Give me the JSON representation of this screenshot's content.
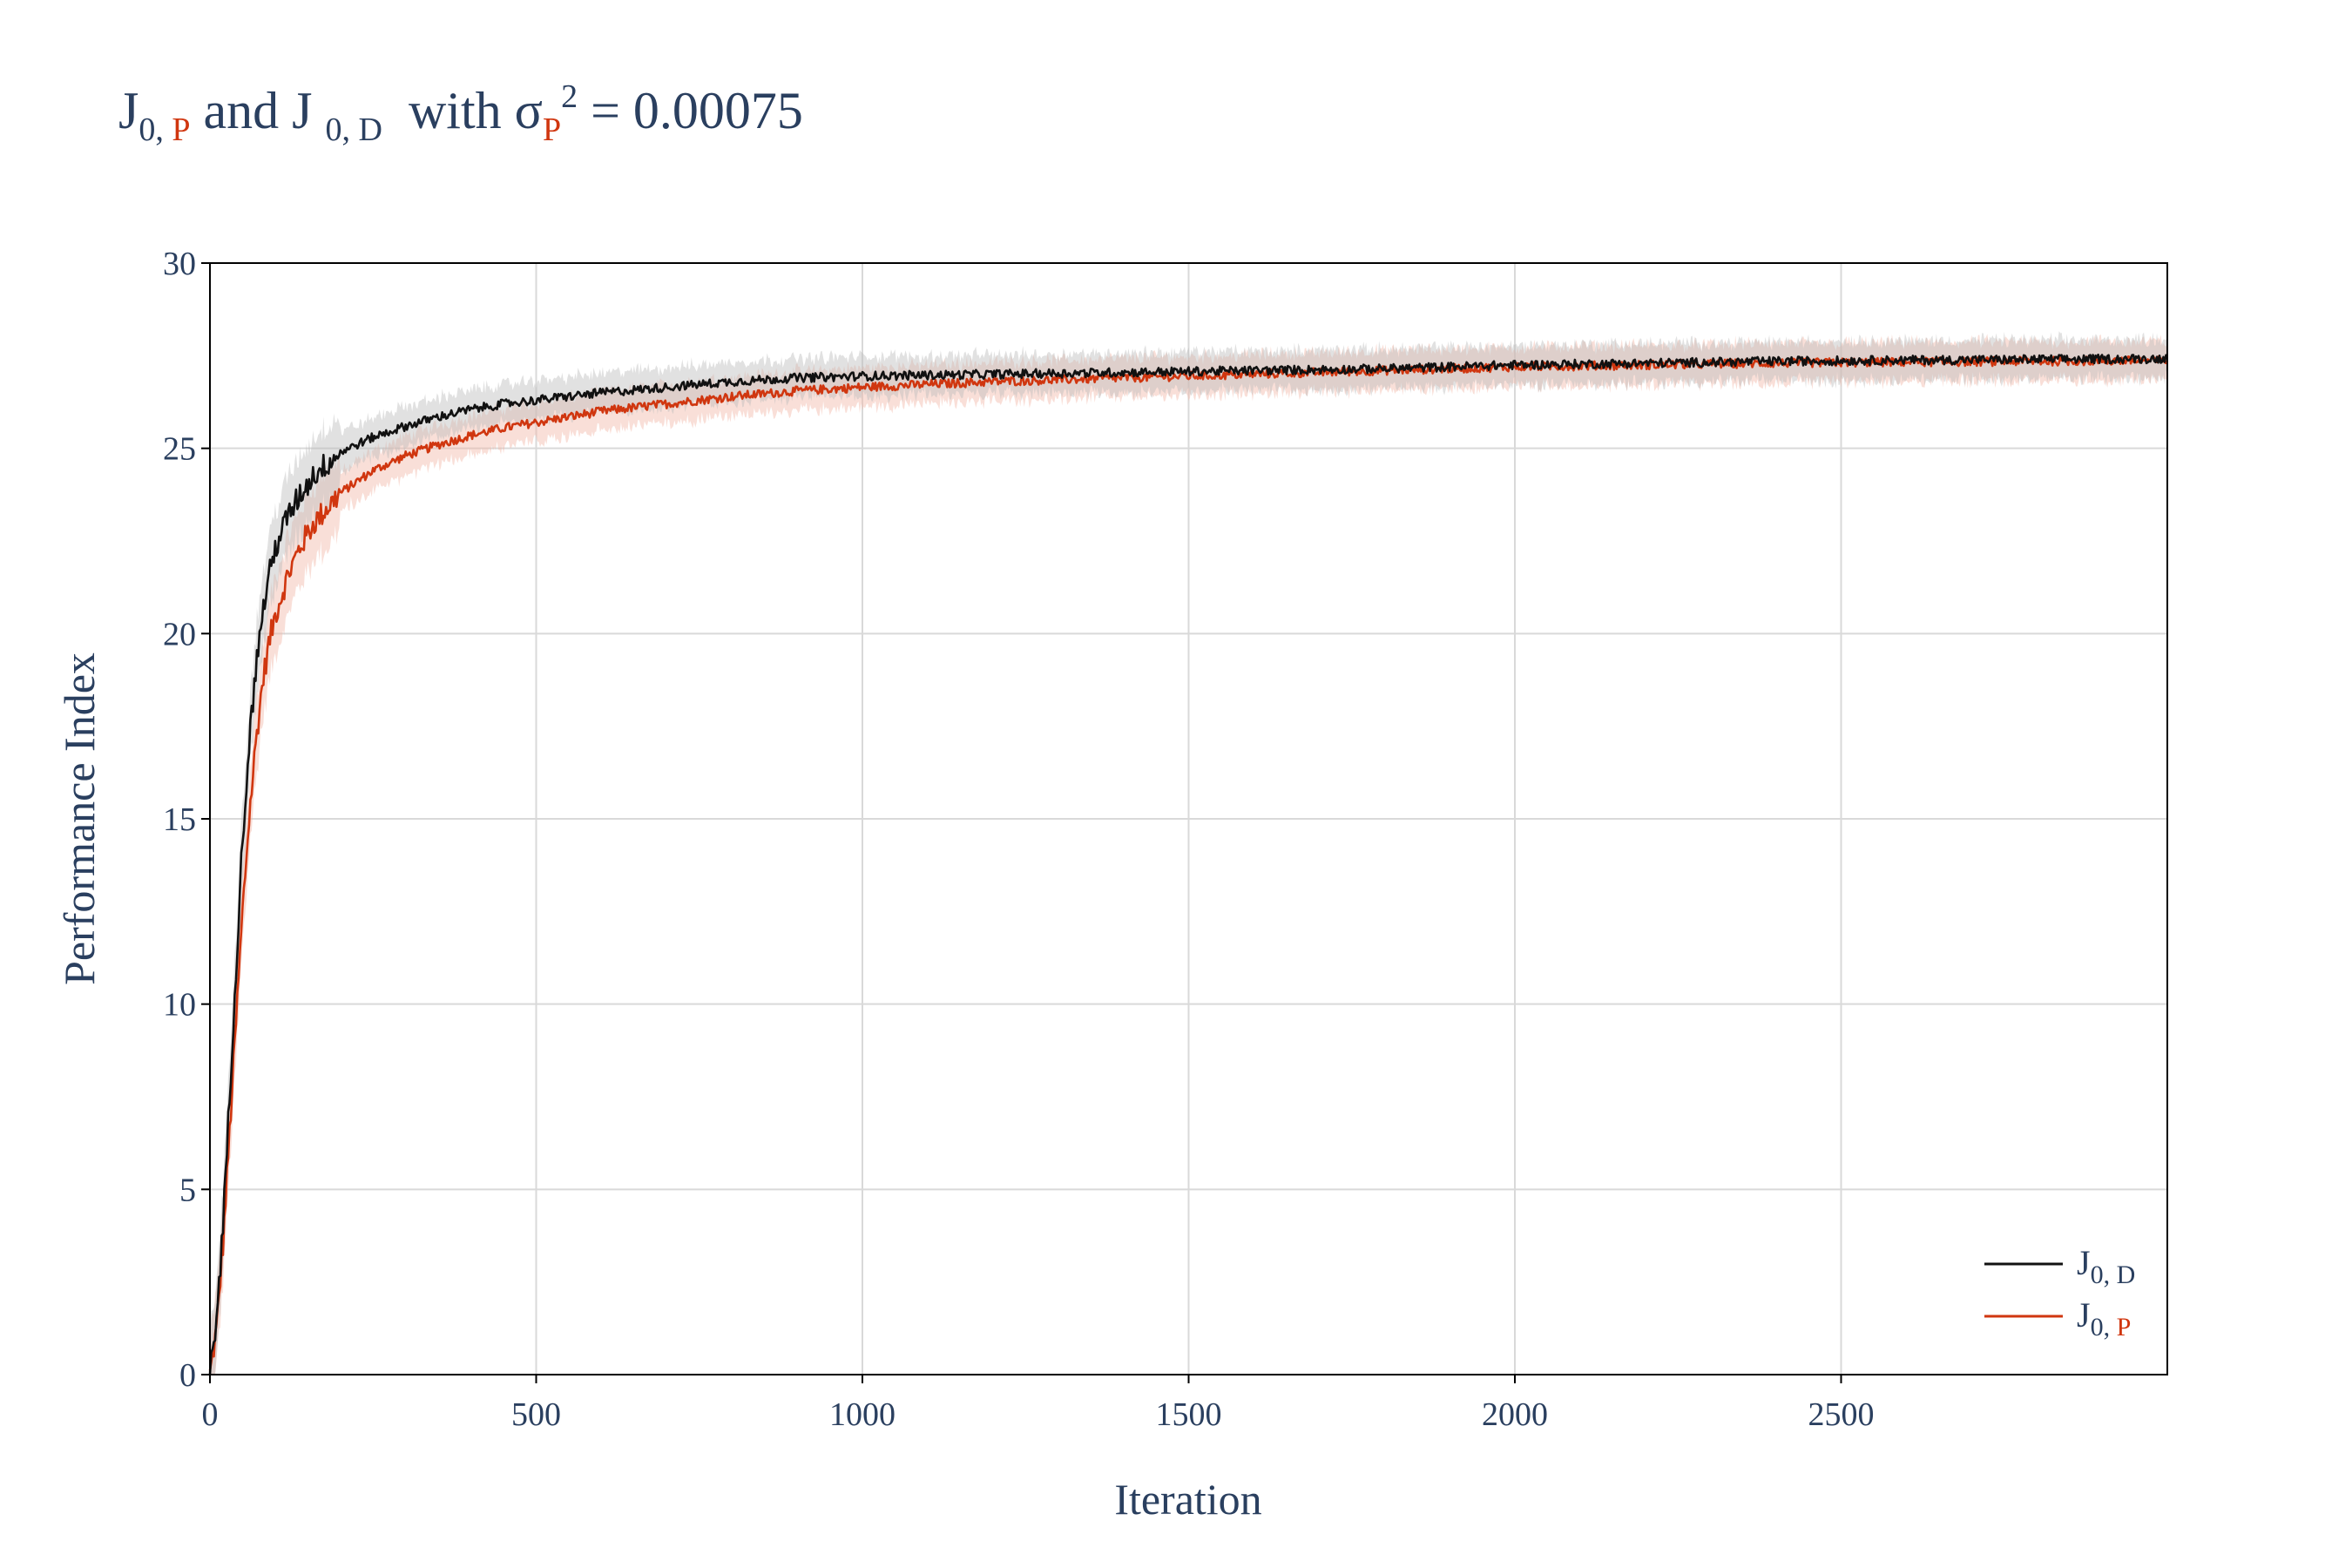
{
  "title": {
    "j": "J",
    "sub_0": "0, ",
    "sub_p": "P",
    "and": " and J ",
    "sub_d": "0, D",
    "with": "  with σ",
    "sigma_sub": "P",
    "sup2": "2",
    "rest": " = 0.00075"
  },
  "colors": {
    "series_d": "#111111",
    "series_p": "#d0360f",
    "band_d": "#bdbdbd",
    "band_p": "#f2b7a8",
    "grid": "#d9d9d9",
    "text": "#2a3f5f"
  },
  "chart_data": {
    "type": "line",
    "xlabel": "Iteration",
    "ylabel": "Performance Index",
    "xlim": [
      0,
      3000
    ],
    "ylim": [
      0,
      30
    ],
    "x_ticks": [
      0,
      500,
      1000,
      1500,
      2000,
      2500
    ],
    "y_ticks": [
      0,
      5,
      10,
      15,
      20,
      25,
      30
    ],
    "grid": true,
    "legend_position": "bottom-right",
    "series": [
      {
        "name_main": "J",
        "name_sub": "0, D",
        "name_sub_red": "",
        "color": "#111111",
        "x": [
          0,
          10,
          20,
          30,
          40,
          50,
          60,
          70,
          80,
          90,
          100,
          120,
          140,
          160,
          180,
          200,
          250,
          300,
          350,
          400,
          450,
          500,
          600,
          700,
          800,
          900,
          1000,
          1200,
          1400,
          1600,
          1800,
          2000,
          2200,
          2400,
          2600,
          2800,
          3000
        ],
        "y": [
          0,
          1.5,
          4.0,
          7.5,
          11.0,
          14.5,
          17.0,
          19.0,
          20.5,
          21.5,
          22.3,
          23.2,
          23.8,
          24.3,
          24.6,
          24.9,
          25.3,
          25.6,
          25.85,
          26.05,
          26.2,
          26.3,
          26.5,
          26.65,
          26.8,
          26.9,
          26.95,
          27.0,
          27.05,
          27.1,
          27.15,
          27.25,
          27.3,
          27.35,
          27.38,
          27.4,
          27.42
        ]
      },
      {
        "name_main": "J",
        "name_sub": "0, ",
        "name_sub_red": "P",
        "color": "#d0360f",
        "x": [
          0,
          10,
          20,
          30,
          40,
          50,
          60,
          70,
          80,
          90,
          100,
          120,
          140,
          160,
          180,
          200,
          250,
          300,
          350,
          400,
          450,
          500,
          600,
          700,
          800,
          900,
          1000,
          1200,
          1400,
          1600,
          1800,
          2000,
          2200,
          2400,
          2600,
          2800,
          3000
        ],
        "y": [
          0,
          1.2,
          3.5,
          6.5,
          9.5,
          12.5,
          15.0,
          17.0,
          18.6,
          19.7,
          20.5,
          21.6,
          22.4,
          23.0,
          23.4,
          23.8,
          24.4,
          24.8,
          25.1,
          25.35,
          25.55,
          25.7,
          26.0,
          26.2,
          26.4,
          26.55,
          26.65,
          26.8,
          26.9,
          27.0,
          27.1,
          27.2,
          27.25,
          27.3,
          27.33,
          27.35,
          27.37
        ]
      }
    ]
  }
}
